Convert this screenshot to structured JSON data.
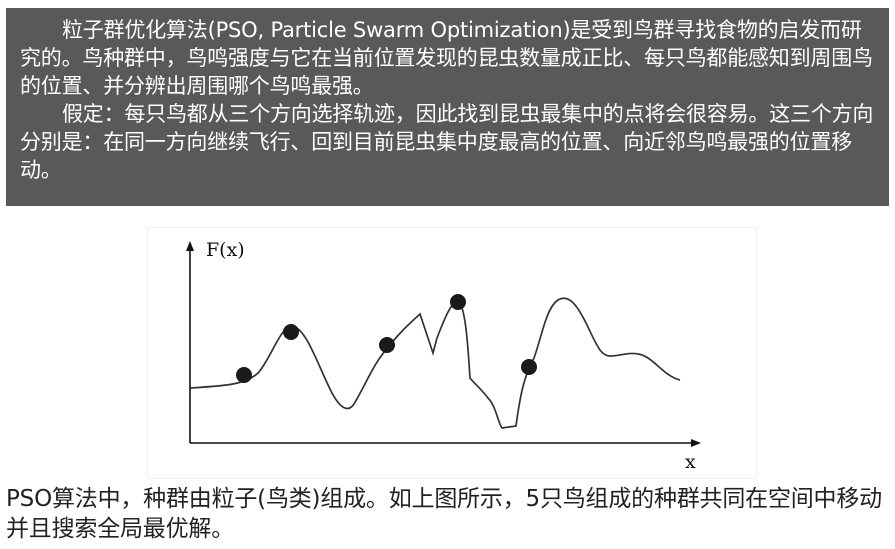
{
  "intro": {
    "paragraph1": "粒子群优化算法(PSO, Particle Swarm Optimization)是受到鸟群寻找食物的启发而研究的。鸟种群中，鸟鸣强度与它在当前位置发现的昆虫数量成正比、每只鸟都能感知到周围鸟的位置、并分辨出周围哪个鸟鸣最强。",
    "paragraph2": "假定：每只鸟都从三个方向选择轨迹，因此找到昆虫最集中的点将会很容易。这三个方向分别是：在同一方向继续飞行、回到目前昆虫集中度最高的位置、向近邻鸟鸣最强的位置移动。"
  },
  "figure": {
    "y_axis_label": "F(x)",
    "x_axis_label": "x"
  },
  "caption": "PSO算法中，种群由粒子(鸟类)组成。如上图所示，5只鸟组成的种群共同在空间中移动并且搜索全局最优解。",
  "colors": {
    "intro_background": "#595959",
    "intro_text": "#ffffff",
    "curve": "#333333",
    "particle": "#1a1a1a"
  }
}
